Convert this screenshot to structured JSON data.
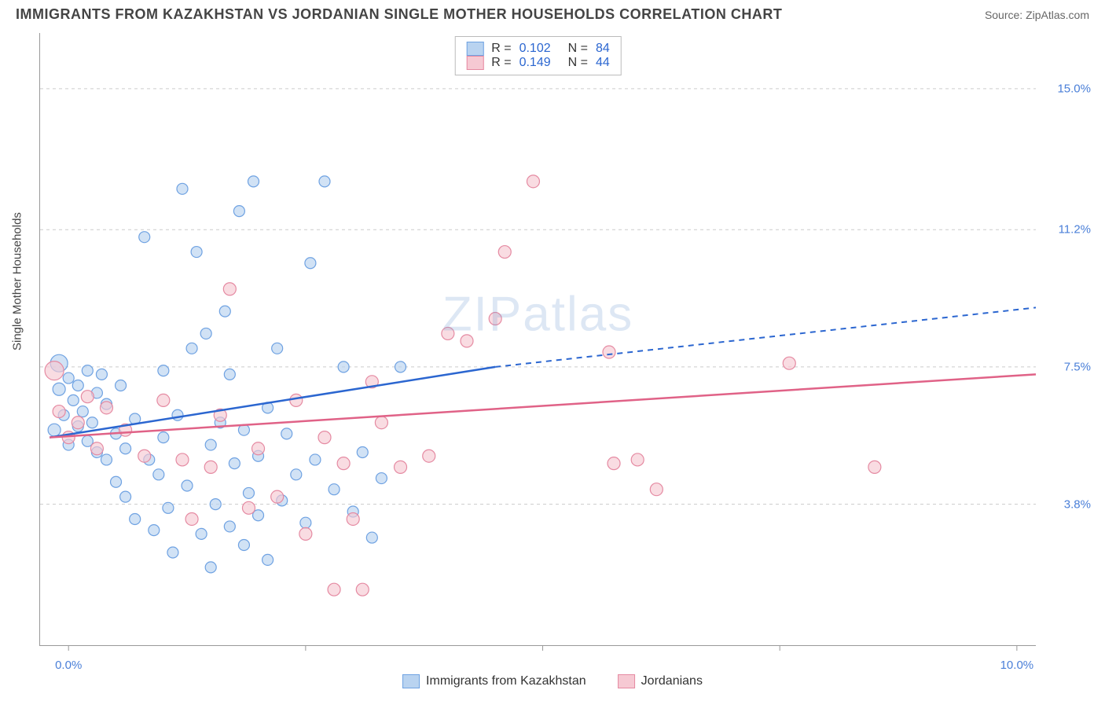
{
  "header": {
    "title": "IMMIGRANTS FROM KAZAKHSTAN VS JORDANIAN SINGLE MOTHER HOUSEHOLDS CORRELATION CHART",
    "source_prefix": "Source: ",
    "source_name": "ZipAtlas.com"
  },
  "chart": {
    "type": "scatter",
    "ylabel": "Single Mother Households",
    "background_color": "#ffffff",
    "grid_color": "#cccccc",
    "axis_color": "#999999",
    "label_color": "#4a7fd8",
    "x_domain": [
      -0.3,
      10.2
    ],
    "y_domain": [
      0,
      16.5
    ],
    "x_ticks": [
      0.0,
      2.5,
      5.0,
      7.5,
      10.0
    ],
    "x_tick_labels": [
      "0.0%",
      "",
      "",
      "",
      "10.0%"
    ],
    "y_ticks": [
      3.8,
      7.5,
      11.2,
      15.0
    ],
    "y_tick_labels": [
      "3.8%",
      "7.5%",
      "11.2%",
      "15.0%"
    ],
    "watermark": "ZIPatlas",
    "series": [
      {
        "id": "kazakhstan",
        "label": "Immigrants from Kazakhstan",
        "fill": "#b9d3f0",
        "stroke": "#6fa2e2",
        "line_color": "#2b66d0",
        "marker_r": 7,
        "R": "0.102",
        "N": "84",
        "trend_solid": {
          "x1": -0.2,
          "y1": 5.6,
          "x2": 4.5,
          "y2": 7.5
        },
        "trend_dash": {
          "x1": 4.5,
          "y1": 7.5,
          "x2": 10.2,
          "y2": 9.1
        },
        "points": [
          [
            -0.15,
            5.8,
            8
          ],
          [
            -0.1,
            7.6,
            11
          ],
          [
            -0.1,
            6.9,
            8
          ],
          [
            -0.05,
            6.2,
            7
          ],
          [
            0.0,
            5.4,
            7
          ],
          [
            0.0,
            7.2,
            7
          ],
          [
            0.05,
            6.6,
            7
          ],
          [
            0.1,
            5.9,
            7
          ],
          [
            0.1,
            7.0,
            7
          ],
          [
            0.15,
            6.3,
            7
          ],
          [
            0.2,
            5.5,
            7
          ],
          [
            0.2,
            7.4,
            7
          ],
          [
            0.25,
            6.0,
            7
          ],
          [
            0.3,
            5.2,
            7
          ],
          [
            0.3,
            6.8,
            7
          ],
          [
            0.35,
            7.3,
            7
          ],
          [
            0.4,
            5.0,
            7
          ],
          [
            0.4,
            6.5,
            7
          ],
          [
            0.5,
            4.4,
            7
          ],
          [
            0.5,
            5.7,
            7
          ],
          [
            0.55,
            7.0,
            7
          ],
          [
            0.6,
            4.0,
            7
          ],
          [
            0.6,
            5.3,
            7
          ],
          [
            0.7,
            3.4,
            7
          ],
          [
            0.7,
            6.1,
            7
          ],
          [
            0.8,
            11.0,
            7
          ],
          [
            0.85,
            5.0,
            7
          ],
          [
            0.9,
            3.1,
            7
          ],
          [
            0.95,
            4.6,
            7
          ],
          [
            1.0,
            7.4,
            7
          ],
          [
            1.0,
            5.6,
            7
          ],
          [
            1.05,
            3.7,
            7
          ],
          [
            1.1,
            2.5,
            7
          ],
          [
            1.15,
            6.2,
            7
          ],
          [
            1.2,
            12.3,
            7
          ],
          [
            1.25,
            4.3,
            7
          ],
          [
            1.3,
            8.0,
            7
          ],
          [
            1.35,
            10.6,
            7
          ],
          [
            1.4,
            3.0,
            7
          ],
          [
            1.45,
            8.4,
            7
          ],
          [
            1.5,
            5.4,
            7
          ],
          [
            1.5,
            2.1,
            7
          ],
          [
            1.55,
            3.8,
            7
          ],
          [
            1.6,
            6.0,
            7
          ],
          [
            1.65,
            9.0,
            7
          ],
          [
            1.7,
            7.3,
            7
          ],
          [
            1.7,
            3.2,
            7
          ],
          [
            1.75,
            4.9,
            7
          ],
          [
            1.8,
            11.7,
            7
          ],
          [
            1.85,
            2.7,
            7
          ],
          [
            1.85,
            5.8,
            7
          ],
          [
            1.9,
            4.1,
            7
          ],
          [
            1.95,
            12.5,
            7
          ],
          [
            2.0,
            3.5,
            7
          ],
          [
            2.0,
            5.1,
            7
          ],
          [
            2.1,
            2.3,
            7
          ],
          [
            2.1,
            6.4,
            7
          ],
          [
            2.2,
            8.0,
            7
          ],
          [
            2.25,
            3.9,
            7
          ],
          [
            2.3,
            5.7,
            7
          ],
          [
            2.4,
            4.6,
            7
          ],
          [
            2.5,
            3.3,
            7
          ],
          [
            2.55,
            10.3,
            7
          ],
          [
            2.6,
            5.0,
            7
          ],
          [
            2.7,
            12.5,
            7
          ],
          [
            2.8,
            4.2,
            7
          ],
          [
            2.9,
            7.5,
            7
          ],
          [
            3.0,
            3.6,
            7
          ],
          [
            3.1,
            5.2,
            7
          ],
          [
            3.2,
            2.9,
            7
          ],
          [
            3.3,
            4.5,
            7
          ],
          [
            3.5,
            7.5,
            7
          ]
        ]
      },
      {
        "id": "jordanians",
        "label": "Jordanians",
        "fill": "#f6c9d3",
        "stroke": "#e58aa2",
        "line_color": "#e06287",
        "marker_r": 7,
        "R": "0.149",
        "N": "44",
        "trend_solid": {
          "x1": -0.2,
          "y1": 5.6,
          "x2": 10.2,
          "y2": 7.3
        },
        "trend_dash": null,
        "points": [
          [
            -0.15,
            7.4,
            12
          ],
          [
            -0.1,
            6.3,
            8
          ],
          [
            0.0,
            5.6,
            8
          ],
          [
            0.1,
            6.0,
            8
          ],
          [
            0.2,
            6.7,
            8
          ],
          [
            0.3,
            5.3,
            8
          ],
          [
            0.4,
            6.4,
            8
          ],
          [
            0.6,
            5.8,
            8
          ],
          [
            0.8,
            5.1,
            8
          ],
          [
            1.0,
            6.6,
            8
          ],
          [
            1.2,
            5.0,
            8
          ],
          [
            1.3,
            3.4,
            8
          ],
          [
            1.5,
            4.8,
            8
          ],
          [
            1.6,
            6.2,
            8
          ],
          [
            1.7,
            9.6,
            8
          ],
          [
            1.9,
            3.7,
            8
          ],
          [
            2.0,
            5.3,
            8
          ],
          [
            2.2,
            4.0,
            8
          ],
          [
            2.4,
            6.6,
            8
          ],
          [
            2.5,
            3.0,
            8
          ],
          [
            2.7,
            5.6,
            8
          ],
          [
            2.8,
            1.5,
            8
          ],
          [
            2.9,
            4.9,
            8
          ],
          [
            3.0,
            3.4,
            8
          ],
          [
            3.1,
            1.5,
            8
          ],
          [
            3.2,
            7.1,
            8
          ],
          [
            3.3,
            6.0,
            8
          ],
          [
            3.5,
            4.8,
            8
          ],
          [
            3.8,
            5.1,
            8
          ],
          [
            4.0,
            8.4,
            8
          ],
          [
            4.2,
            8.2,
            8
          ],
          [
            4.5,
            8.8,
            8
          ],
          [
            4.6,
            10.6,
            8
          ],
          [
            4.9,
            12.5,
            8
          ],
          [
            5.7,
            7.9,
            8
          ],
          [
            5.75,
            4.9,
            8
          ],
          [
            6.0,
            5.0,
            8
          ],
          [
            6.2,
            4.2,
            8
          ],
          [
            7.6,
            7.6,
            8
          ],
          [
            8.5,
            4.8,
            8
          ]
        ]
      }
    ],
    "legend_top": {
      "r_label": "R =",
      "n_label": "N ="
    },
    "legend_bottom": [
      {
        "series": 0
      },
      {
        "series": 1
      }
    ]
  }
}
